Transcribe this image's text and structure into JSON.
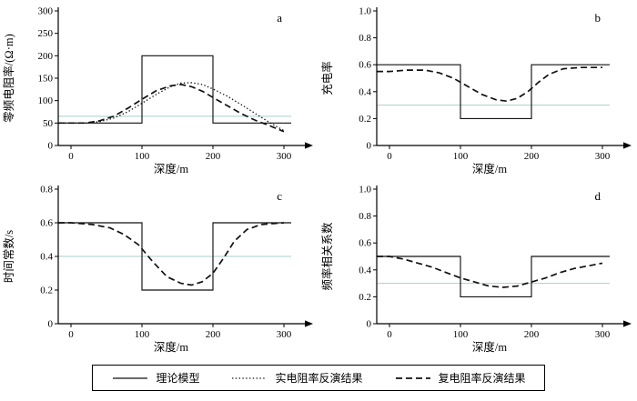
{
  "figure": {
    "legend": {
      "items": [
        {
          "label": "理论模型",
          "style": "solid"
        },
        {
          "label": "实电阻率反演结果",
          "style": "dotted"
        },
        {
          "label": "复电阻率反演结果",
          "style": "dashed"
        }
      ]
    }
  },
  "colors": {
    "curve": "#111111",
    "axis": "#000000",
    "ref_line": "#a9cfcb",
    "background": "#ffffff"
  },
  "chart_data": [
    {
      "id": "a",
      "type": "line",
      "panel_label": "a",
      "xlabel": "深度/m",
      "ylabel": "零频电阻率/(Ω·m)",
      "xlim": [
        0,
        300
      ],
      "ylim": [
        0,
        300
      ],
      "xticks": [
        "0",
        "100",
        "200",
        "300"
      ],
      "yticks": [
        "0",
        "50",
        "100",
        "150",
        "200",
        "250",
        "300"
      ],
      "ref_line_y": 65,
      "series": [
        {
          "name": "理论模型",
          "style": "solid",
          "points": [
            [
              0,
              50
            ],
            [
              100,
              50
            ],
            [
              100,
              200
            ],
            [
              200,
              200
            ],
            [
              200,
              50
            ],
            [
              300,
              50
            ]
          ]
        },
        {
          "name": "实电阻率反演结果",
          "style": "dotted",
          "points": [
            [
              0,
              50
            ],
            [
              20,
              50
            ],
            [
              40,
              53
            ],
            [
              60,
              61
            ],
            [
              80,
              75
            ],
            [
              100,
              94
            ],
            [
              120,
              114
            ],
            [
              140,
              131
            ],
            [
              155,
              139
            ],
            [
              170,
              140
            ],
            [
              185,
              136
            ],
            [
              200,
              126
            ],
            [
              220,
              110
            ],
            [
              240,
              91
            ],
            [
              260,
              71
            ],
            [
              280,
              51
            ],
            [
              300,
              33
            ]
          ]
        },
        {
          "name": "复电阻率反演结果",
          "style": "dashed",
          "points": [
            [
              0,
              50
            ],
            [
              20,
              50
            ],
            [
              40,
              55
            ],
            [
              60,
              65
            ],
            [
              80,
              83
            ],
            [
              100,
              103
            ],
            [
              120,
              122
            ],
            [
              140,
              133
            ],
            [
              155,
              136
            ],
            [
              170,
              131
            ],
            [
              185,
              121
            ],
            [
              200,
              107
            ],
            [
              220,
              89
            ],
            [
              240,
              71
            ],
            [
              260,
              56
            ],
            [
              280,
              44
            ],
            [
              300,
              31
            ]
          ]
        }
      ]
    },
    {
      "id": "b",
      "type": "line",
      "panel_label": "b",
      "xlabel": "深度/m",
      "ylabel": "充电率",
      "xlim": [
        0,
        300
      ],
      "ylim": [
        0,
        1.0
      ],
      "xticks": [
        "0",
        "100",
        "200",
        "300"
      ],
      "yticks": [
        "0",
        "0.2",
        "0.4",
        "0.6",
        "0.8",
        "1.0"
      ],
      "ref_line_y": 0.3,
      "series": [
        {
          "name": "理论模型",
          "style": "solid",
          "points": [
            [
              0,
              0.6
            ],
            [
              100,
              0.6
            ],
            [
              100,
              0.2
            ],
            [
              200,
              0.2
            ],
            [
              200,
              0.6
            ],
            [
              300,
              0.6
            ]
          ]
        },
        {
          "name": "复电阻率反演结果",
          "style": "dashed",
          "points": [
            [
              0,
              0.55
            ],
            [
              25,
              0.56
            ],
            [
              50,
              0.56
            ],
            [
              70,
              0.54
            ],
            [
              90,
              0.5
            ],
            [
              110,
              0.44
            ],
            [
              130,
              0.38
            ],
            [
              150,
              0.34
            ],
            [
              165,
              0.33
            ],
            [
              180,
              0.35
            ],
            [
              195,
              0.4
            ],
            [
              210,
              0.47
            ],
            [
              225,
              0.53
            ],
            [
              245,
              0.57
            ],
            [
              270,
              0.58
            ],
            [
              300,
              0.58
            ]
          ]
        }
      ]
    },
    {
      "id": "c",
      "type": "line",
      "panel_label": "c",
      "xlabel": "深度/m",
      "ylabel": "时间常数/s",
      "xlim": [
        0,
        300
      ],
      "ylim": [
        0,
        0.8
      ],
      "xticks": [
        "0",
        "100",
        "200",
        "300"
      ],
      "yticks": [
        "0",
        "0.2",
        "0.4",
        "0.6",
        "0.8"
      ],
      "ref_line_y": 0.4,
      "series": [
        {
          "name": "理论模型",
          "style": "solid",
          "points": [
            [
              0,
              0.6
            ],
            [
              100,
              0.6
            ],
            [
              100,
              0.2
            ],
            [
              200,
              0.2
            ],
            [
              200,
              0.6
            ],
            [
              300,
              0.6
            ]
          ]
        },
        {
          "name": "复电阻率反演结果",
          "style": "dashed",
          "points": [
            [
              0,
              0.6
            ],
            [
              30,
              0.59
            ],
            [
              55,
              0.57
            ],
            [
              75,
              0.53
            ],
            [
              95,
              0.47
            ],
            [
              115,
              0.37
            ],
            [
              135,
              0.28
            ],
            [
              155,
              0.24
            ],
            [
              170,
              0.23
            ],
            [
              185,
              0.25
            ],
            [
              200,
              0.3
            ],
            [
              215,
              0.39
            ],
            [
              230,
              0.49
            ],
            [
              248,
              0.56
            ],
            [
              268,
              0.59
            ],
            [
              300,
              0.6
            ]
          ]
        }
      ]
    },
    {
      "id": "d",
      "type": "line",
      "panel_label": "d",
      "xlabel": "深度/m",
      "ylabel": "频率相关系数",
      "xlim": [
        0,
        300
      ],
      "ylim": [
        0,
        1.0
      ],
      "xticks": [
        "0",
        "100",
        "200",
        "300"
      ],
      "yticks": [
        "0",
        "0.2",
        "0.4",
        "0.6",
        "0.8",
        "1.0"
      ],
      "ref_line_y": 0.3,
      "series": [
        {
          "name": "理论模型",
          "style": "solid",
          "points": [
            [
              0,
              0.5
            ],
            [
              100,
              0.5
            ],
            [
              100,
              0.2
            ],
            [
              200,
              0.2
            ],
            [
              200,
              0.5
            ],
            [
              300,
              0.5
            ]
          ]
        },
        {
          "name": "复电阻率反演结果",
          "style": "dashed",
          "points": [
            [
              0,
              0.5
            ],
            [
              20,
              0.48
            ],
            [
              40,
              0.45
            ],
            [
              60,
              0.42
            ],
            [
              80,
              0.38
            ],
            [
              100,
              0.34
            ],
            [
              120,
              0.31
            ],
            [
              140,
              0.28
            ],
            [
              160,
              0.27
            ],
            [
              180,
              0.28
            ],
            [
              200,
              0.31
            ],
            [
              220,
              0.34
            ],
            [
              240,
              0.38
            ],
            [
              260,
              0.41
            ],
            [
              280,
              0.43
            ],
            [
              300,
              0.45
            ]
          ]
        }
      ]
    }
  ]
}
